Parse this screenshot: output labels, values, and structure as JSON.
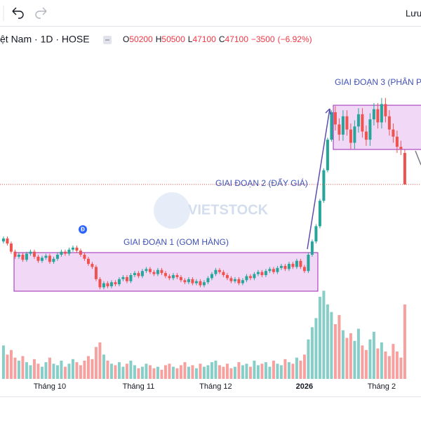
{
  "toolbar": {
    "save": "Lưu"
  },
  "chart_data": {
    "type": "candlestick",
    "symbol_title": "ệt Nam · 1D · HOSE",
    "ohlc_letters": [
      "O",
      "H",
      "L",
      "C"
    ],
    "change": {
      "value": -3500,
      "label": "−3500"
    },
    "change_pct": {
      "value": -6.92,
      "label": "(−6.92%)"
    },
    "watermark": "VIETSTOCK",
    "event_marker": "Đ",
    "annotations": [
      "GIAI ĐOẠN 1 (GOM HÀNG)",
      "GIAI ĐOẠN 2 (ĐẨY GIÁ)",
      "GIAI ĐOẠN 3 (PHÂN P"
    ],
    "up_color": "#26a69a",
    "down_color": "#ef5350",
    "xlim": [
      -0.9,
      108.2
    ],
    "ylim": [
      28000,
      60400
    ],
    "volume_lim": [
      0,
      6
    ],
    "xticks": [
      {
        "value": 12,
        "label": "Tháng 10"
      },
      {
        "value": 35,
        "label": "Tháng 11"
      },
      {
        "value": 55,
        "label": "Tháng 12"
      },
      {
        "value": 78,
        "label": "2026"
      },
      {
        "value": 98,
        "label": "Tháng 2"
      }
    ],
    "open": [
      41500,
      41800,
      41300,
      40500,
      40000,
      40200,
      39700,
      40300,
      40500,
      40000,
      39600,
      39900,
      40100,
      39500,
      39800,
      40200,
      40500,
      40300,
      40700,
      40900,
      40600,
      40200,
      39800,
      39300,
      39000,
      37800,
      37000,
      37400,
      37100,
      37500,
      37300,
      37800,
      38000,
      37600,
      38200,
      38400,
      38100,
      38600,
      38800,
      38500,
      38300,
      38700,
      38400,
      38100,
      37900,
      38200,
      38000,
      37700,
      37500,
      37800,
      37400,
      37600,
      37200,
      37500,
      37900,
      38300,
      38700,
      38500,
      38200,
      37900,
      37600,
      37800,
      37400,
      37700,
      38100,
      37900,
      38300,
      38500,
      38200,
      38600,
      38800,
      38500,
      38900,
      39100,
      38800,
      39300,
      39000,
      39600,
      39000,
      38600,
      40200,
      41500,
      43000,
      45500,
      48500,
      51500,
      54200,
      53000,
      52000,
      53800,
      52500,
      51200,
      52800,
      54000,
      52300,
      51500,
      53500,
      54500,
      53200,
      55000,
      53800,
      52500,
      51800,
      50800,
      50200
    ],
    "high": [
      42000,
      42000,
      41500,
      40700,
      40400,
      40400,
      40500,
      40700,
      40700,
      40200,
      40100,
      40300,
      40300,
      40000,
      40400,
      40700,
      40700,
      40900,
      41100,
      41100,
      40800,
      40400,
      40000,
      39500,
      39200,
      38000,
      37600,
      37600,
      37700,
      37700,
      38000,
      38200,
      38200,
      38400,
      38600,
      38600,
      38800,
      39000,
      39000,
      38700,
      38900,
      38900,
      38600,
      38300,
      38400,
      38400,
      38200,
      37900,
      38000,
      38000,
      37800,
      37800,
      37700,
      38100,
      38500,
      38900,
      38900,
      38700,
      38400,
      38100,
      38000,
      38000,
      37900,
      38300,
      38300,
      38500,
      38700,
      38700,
      38800,
      39000,
      39000,
      39100,
      39300,
      39300,
      39500,
      39500,
      39800,
      39800,
      39200,
      40400,
      41700,
      43200,
      45700,
      48700,
      51700,
      54400,
      54800,
      53600,
      54400,
      54400,
      53100,
      53400,
      54600,
      54600,
      52900,
      54100,
      55100,
      55100,
      55600,
      55600,
      54400,
      53100,
      52400,
      51400,
      50500
    ],
    "low": [
      41300,
      41100,
      40300,
      39800,
      39800,
      39500,
      39500,
      40100,
      39800,
      39400,
      39400,
      39700,
      39300,
      39300,
      39600,
      40000,
      40100,
      40100,
      40500,
      40400,
      40000,
      39600,
      39100,
      38800,
      37600,
      36800,
      36800,
      36900,
      36900,
      37100,
      37100,
      37600,
      37400,
      37400,
      38000,
      37900,
      37900,
      38400,
      38300,
      38100,
      38100,
      38200,
      37900,
      37700,
      37700,
      37800,
      37500,
      37300,
      37300,
      37200,
      37200,
      37000,
      37000,
      37300,
      37700,
      38100,
      38300,
      38000,
      37700,
      37400,
      37400,
      37200,
      37200,
      37500,
      37700,
      37700,
      38100,
      38000,
      38000,
      38400,
      38300,
      38300,
      38700,
      38600,
      38600,
      38800,
      38800,
      38800,
      38400,
      38400,
      40000,
      41300,
      42800,
      45300,
      48300,
      51300,
      52400,
      51400,
      51400,
      51900,
      50600,
      50600,
      52200,
      51700,
      50900,
      50900,
      52900,
      52600,
      52600,
      53200,
      51900,
      51200,
      50200,
      50000,
      47100
    ],
    "close": [
      41800,
      41300,
      40500,
      40000,
      40200,
      39700,
      40300,
      40500,
      40000,
      39600,
      39900,
      40100,
      39500,
      39800,
      40200,
      40500,
      40300,
      40700,
      40900,
      40600,
      40200,
      39800,
      39300,
      39000,
      37800,
      37000,
      37400,
      37100,
      37500,
      37300,
      37800,
      38000,
      37600,
      38200,
      38400,
      38100,
      38600,
      38800,
      38500,
      38300,
      38700,
      38400,
      38100,
      37900,
      38200,
      38000,
      37700,
      37500,
      37800,
      37400,
      37600,
      37200,
      37500,
      37900,
      38300,
      38700,
      38500,
      38200,
      37900,
      37600,
      37800,
      37400,
      37700,
      38100,
      37900,
      38300,
      38500,
      38200,
      38600,
      38800,
      38500,
      38900,
      39100,
      38800,
      39300,
      39000,
      39600,
      39000,
      38600,
      40200,
      41500,
      43000,
      45500,
      48500,
      51500,
      54200,
      53000,
      52000,
      53800,
      52500,
      51200,
      52800,
      54000,
      52300,
      51500,
      53500,
      54500,
      53200,
      55000,
      53800,
      52500,
      51800,
      50800,
      50600,
      47100
    ],
    "volume": [
      2.2,
      1.6,
      1.9,
      1.4,
      1.2,
      1.5,
      1.1,
      0.9,
      1.3,
      1.0,
      0.8,
      1.1,
      1.4,
      1.0,
      0.9,
      1.2,
      0.8,
      1.0,
      1.3,
      1.1,
      0.9,
      1.2,
      1.5,
      1.3,
      2.1,
      2.4,
      1.6,
      1.2,
      1.0,
      0.9,
      1.1,
      0.8,
      1.0,
      1.2,
      0.9,
      0.7,
      0.8,
      1.0,
      0.9,
      0.7,
      0.8,
      0.6,
      0.9,
      1.0,
      0.8,
      0.7,
      0.9,
      1.1,
      0.8,
      0.9,
      0.7,
      1.0,
      0.8,
      0.9,
      1.1,
      1.2,
      0.9,
      0.8,
      1.0,
      0.7,
      0.8,
      1.1,
      0.9,
      1.0,
      0.8,
      1.2,
      0.9,
      1.0,
      1.1,
      0.8,
      1.2,
      1.0,
      0.9,
      1.3,
      1.1,
      1.0,
      1.4,
      1.2,
      1.6,
      2.6,
      3.4,
      4.0,
      5.4,
      5.8,
      4.9,
      4.4,
      3.6,
      4.2,
      3.2,
      2.7,
      3.0,
      2.5,
      3.3,
      2.2,
      1.9,
      2.6,
      3.1,
      2.0,
      2.4,
      1.8,
      1.5,
      2.3,
      1.8,
      1.4,
      4.9
    ]
  }
}
